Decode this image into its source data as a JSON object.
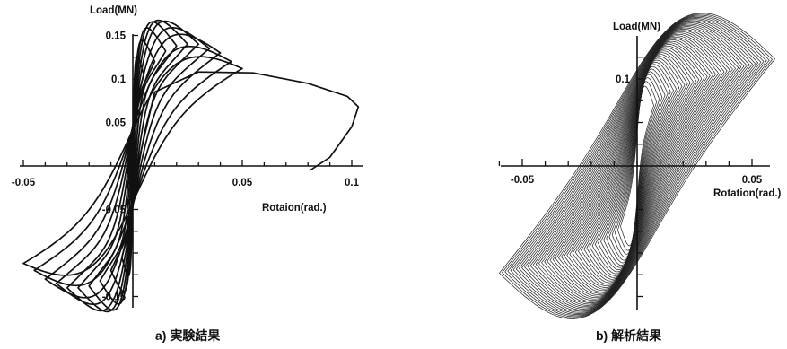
{
  "chart_data": [
    {
      "type": "line",
      "caption": "a) 実験結果",
      "xlabel": "Rotaion(rad.)",
      "ylabel": "Load(MN)",
      "xlim": [
        -0.05,
        0.1
      ],
      "ylim": [
        -0.15,
        0.15
      ],
      "x_ticks": [
        -0.05,
        0.05,
        0.1
      ],
      "x_tick_labels": [
        "-0.05",
        "0.05",
        "0.1"
      ],
      "y_ticks": [
        0.15,
        0.1,
        0.05,
        -0.05,
        -0.15
      ],
      "y_tick_labels": [
        "0.15",
        "0.1",
        "0.05",
        "-0.05",
        "-0.15"
      ],
      "grid": false,
      "legend": "none",
      "description_series": "Cyclic load–rotation hysteresis loops; amplitude grows until a final excursion to about 0.1 rad",
      "loops": [
        {
          "rot_amp": 0.005,
          "load_peak": 0.105
        },
        {
          "rot_amp": 0.01,
          "load_peak": 0.12
        },
        {
          "rot_amp": 0.015,
          "load_peak": 0.132
        },
        {
          "rot_amp": 0.02,
          "load_peak": 0.138
        },
        {
          "rot_amp": 0.025,
          "load_peak": 0.14
        },
        {
          "rot_amp": 0.03,
          "load_peak": 0.14
        },
        {
          "rot_amp": 0.035,
          "load_peak": 0.135
        },
        {
          "rot_amp": 0.04,
          "load_peak": 0.13
        },
        {
          "rot_amp": 0.045,
          "load_peak": 0.12
        },
        {
          "rot_amp": 0.05,
          "load_peak": 0.112
        }
      ],
      "final_excursion": {
        "points": [
          [
            -0.002,
            -0.045
          ],
          [
            0.01,
            0.085
          ],
          [
            0.03,
            0.108
          ],
          [
            0.055,
            0.107
          ],
          [
            0.08,
            0.095
          ],
          [
            0.098,
            0.08
          ],
          [
            0.103,
            0.068
          ],
          [
            0.1,
            0.045
          ],
          [
            0.09,
            0.01
          ],
          [
            0.081,
            -0.005
          ]
        ]
      }
    },
    {
      "type": "line",
      "caption": "b) 解析結果",
      "xlabel": "Rotation(rad.)",
      "ylabel": "Load(MN)",
      "xlim": [
        -0.065,
        0.055
      ],
      "ylim": [
        -0.15,
        0.13
      ],
      "x_ticks": [
        -0.05,
        0.05
      ],
      "x_tick_labels": [
        "-0.05",
        "0.05"
      ],
      "y_ticks": [
        0.1
      ],
      "y_tick_labels": [
        "0.1"
      ],
      "grid": false,
      "legend": "none",
      "description_series": "Analytical load–rotation hysteresis loops, densely overlapping",
      "loop_count": 44,
      "max_rot_amp": 0.06,
      "max_load_peak": 0.123
    }
  ]
}
